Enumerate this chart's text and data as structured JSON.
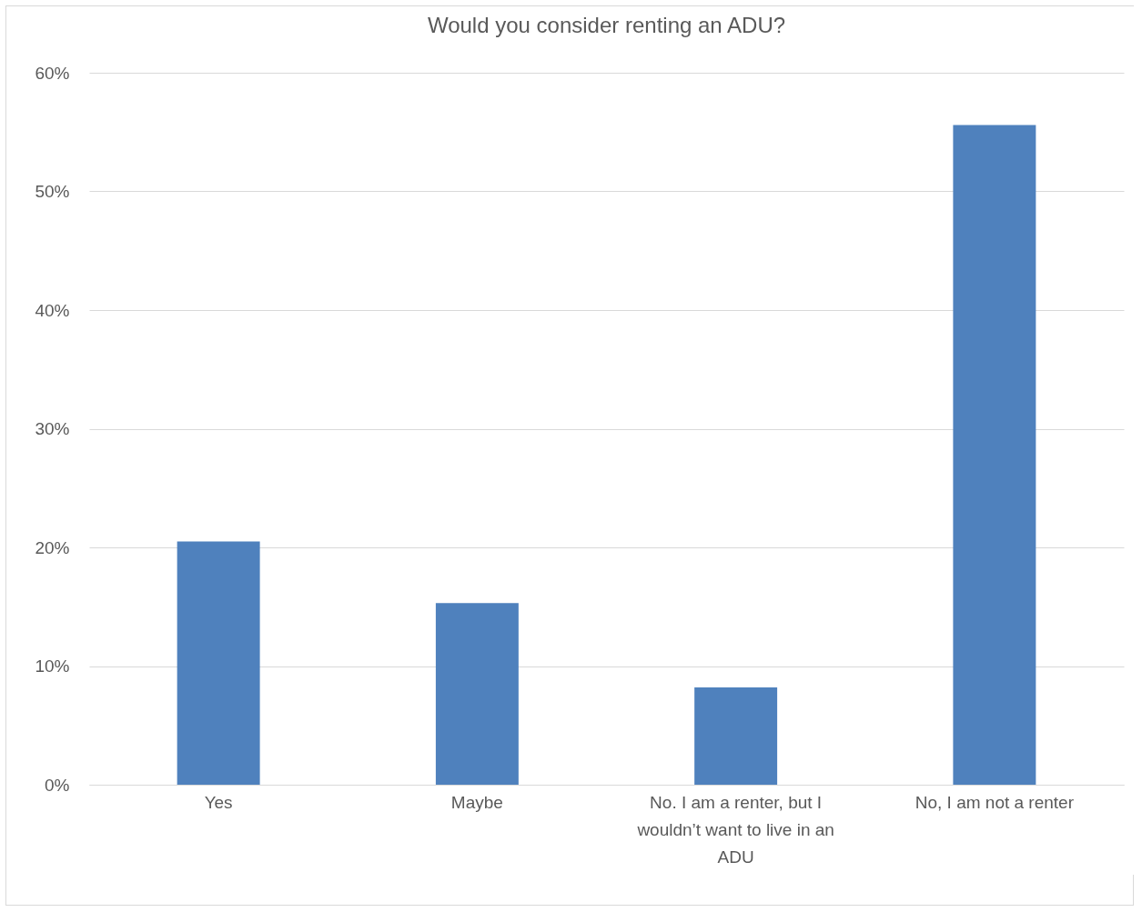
{
  "chart_data": {
    "type": "bar",
    "title": "Would you consider renting an ADU?",
    "categories": [
      "Yes",
      "Maybe",
      "No. I am a renter, but I wouldn’t want to live in an ADU",
      "No, I am not a renter"
    ],
    "values": [
      20.5,
      15.3,
      8.2,
      55.6
    ],
    "color": "#4f81bd",
    "ylim": [
      0,
      60
    ],
    "yticks": [
      {
        "value": 0,
        "label": "0%"
      },
      {
        "value": 10,
        "label": "10%"
      },
      {
        "value": 20,
        "label": "20%"
      },
      {
        "value": 30,
        "label": "30%"
      },
      {
        "value": 40,
        "label": "40%"
      },
      {
        "value": 50,
        "label": "50%"
      },
      {
        "value": 60,
        "label": "60%"
      }
    ],
    "grid": "y"
  }
}
